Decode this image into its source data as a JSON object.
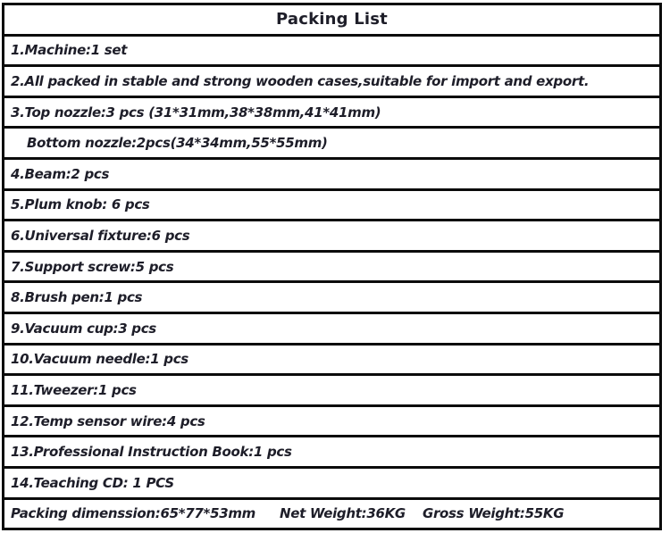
{
  "table": {
    "title": "Packing List",
    "rows": [
      {
        "text": "1.Machine:1 set",
        "indent": false
      },
      {
        "text": "2.All packed in stable and strong wooden cases,suitable for import and export.",
        "indent": false
      },
      {
        "text": "3.Top nozzle:3 pcs (31*31mm,38*38mm,41*41mm)",
        "indent": false
      },
      {
        "text": "Bottom nozzle:2pcs(34*34mm,55*55mm)",
        "indent": true
      },
      {
        "text": "4.Beam:2 pcs",
        "indent": false
      },
      {
        "text": "5.Plum knob: 6 pcs",
        "indent": false
      },
      {
        "text": "6.Universal fixture:6 pcs",
        "indent": false
      },
      {
        "text": "7.Support screw:5 pcs",
        "indent": false
      },
      {
        "text": "8.Brush pen:1 pcs",
        "indent": false
      },
      {
        "text": "9.Vacuum cup:3 pcs",
        "indent": false
      },
      {
        "text": "10.Vacuum needle:1 pcs",
        "indent": false
      },
      {
        "text": "11.Tweezer:1 pcs",
        "indent": false
      },
      {
        "text": "12.Temp sensor wire:4 pcs",
        "indent": false
      },
      {
        "text": "13.Professional Instruction Book:1 pcs",
        "indent": false
      },
      {
        "text": "14.Teaching CD: 1 PCS",
        "indent": false
      }
    ],
    "footer": {
      "packing_dimension": "Packing dimenssion:65*77*53mm",
      "net_weight": "Net Weight:36KG",
      "gross_weight": "Gross Weight:55KG"
    }
  },
  "colors": {
    "background": "#ffffff",
    "border": "#0b0b0b",
    "text": "#1e1e29"
  }
}
